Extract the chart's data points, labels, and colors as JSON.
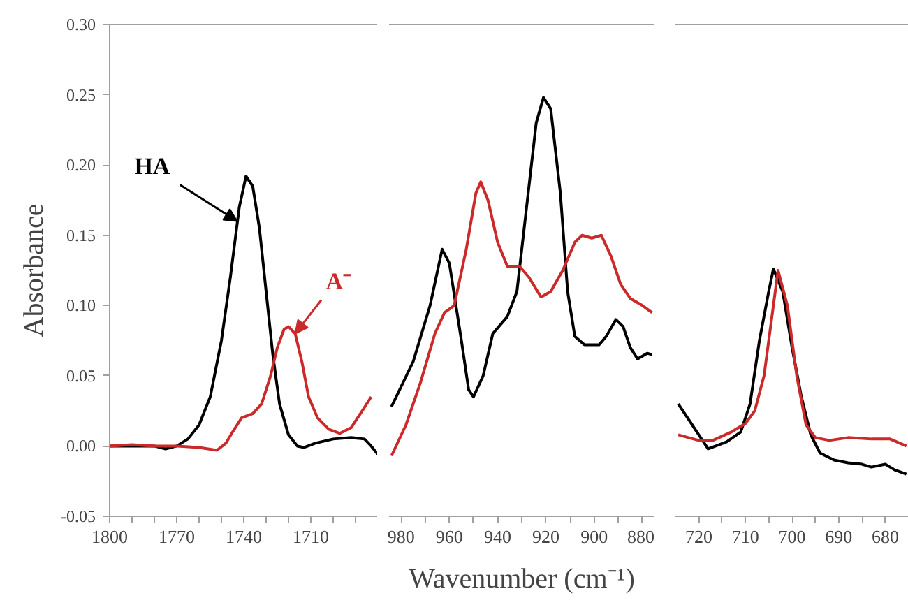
{
  "chart_data": [
    {
      "type": "line",
      "ylabel": "Absorbance",
      "xlim": [
        1800,
        1680
      ],
      "ylim": [
        -0.05,
        0.3
      ],
      "xticks": [
        1800,
        {
          "value": 1790,
          "label": null
        },
        {
          "value": 1780,
          "label": null
        },
        1770,
        {
          "value": 1760,
          "label": null
        },
        {
          "value": 1750,
          "label": null
        },
        1740,
        {
          "value": 1730,
          "label": null
        },
        {
          "value": 1720,
          "label": null
        },
        1710,
        {
          "value": 1700,
          "label": null
        },
        {
          "value": 1690,
          "label": null
        }
      ],
      "yticks": [
        {
          "value": -0.05,
          "label": "-0.05"
        },
        {
          "value": 0,
          "label": "0.00"
        },
        {
          "value": 0.05,
          "label": "0.05"
        },
        {
          "value": 0.1,
          "label": "0.10"
        },
        {
          "value": 0.15,
          "label": "0.15"
        },
        {
          "value": 0.2,
          "label": "0.20"
        },
        {
          "value": 0.25,
          "label": "0.25"
        },
        {
          "value": 0.3,
          "label": "0.30"
        }
      ],
      "annotations": [
        {
          "text": "HA",
          "x": 1743,
          "y": 0.16
        },
        {
          "text": "A⁻",
          "x": 1717,
          "y": 0.08
        }
      ],
      "series": [
        {
          "color": "#000000",
          "x": [
            1800,
            1780,
            1775,
            1770,
            1765,
            1760,
            1755,
            1750,
            1746,
            1742,
            1739,
            1736,
            1733,
            1730,
            1727,
            1724,
            1720,
            1716,
            1713,
            1708,
            1700,
            1692,
            1686,
            1683,
            1680
          ],
          "values": [
            0,
            0,
            -0.002,
            0,
            0.005,
            0.015,
            0.035,
            0.075,
            0.12,
            0.17,
            0.192,
            0.185,
            0.155,
            0.11,
            0.065,
            0.03,
            0.008,
            0,
            -0.001,
            0.002,
            0.005,
            0.006,
            0.005,
            0,
            -0.006
          ]
        },
        {
          "color": "#cc2a2a",
          "x": [
            1800,
            1790,
            1780,
            1770,
            1760,
            1752,
            1748,
            1745,
            1741,
            1736,
            1732,
            1728,
            1725,
            1722,
            1720,
            1717,
            1714,
            1711,
            1707,
            1702,
            1697,
            1692,
            1687,
            1683
          ],
          "values": [
            0,
            0.001,
            0,
            0,
            -0.001,
            -0.003,
            0.002,
            0.01,
            0.02,
            0.023,
            0.03,
            0.05,
            0.07,
            0.083,
            0.085,
            0.08,
            0.06,
            0.035,
            0.02,
            0.012,
            0.009,
            0.013,
            0.025,
            0.035
          ]
        }
      ]
    },
    {
      "type": "line",
      "xlabel": "Wavenumber (cm⁻¹)",
      "xlim": [
        985,
        875
      ],
      "ylim": [
        -0.05,
        0.3
      ],
      "tick_labels": "x",
      "xticks": [
        980,
        {
          "value": 970,
          "label": null
        },
        960,
        {
          "value": 950,
          "label": null
        },
        940,
        {
          "value": 930,
          "label": null
        },
        920,
        {
          "value": 910,
          "label": null
        },
        900,
        {
          "value": 890,
          "label": null
        },
        880
      ],
      "series": [
        {
          "color": "#000000",
          "x": [
            984,
            975,
            968,
            963,
            960,
            955,
            952,
            950,
            946,
            942,
            936,
            932,
            928,
            924,
            921,
            918,
            914,
            911,
            908,
            904,
            898,
            895,
            891,
            888,
            885,
            882,
            878,
            876
          ],
          "values": [
            0.028,
            0.06,
            0.1,
            0.14,
            0.13,
            0.075,
            0.04,
            0.035,
            0.05,
            0.08,
            0.092,
            0.11,
            0.17,
            0.23,
            0.248,
            0.24,
            0.18,
            0.11,
            0.078,
            0.072,
            0.072,
            0.078,
            0.09,
            0.085,
            0.07,
            0.062,
            0.066,
            0.065
          ]
        },
        {
          "color": "#cc2a2a",
          "x": [
            984,
            978,
            972,
            966,
            962,
            958,
            953,
            949,
            947,
            944,
            940,
            936,
            931,
            927,
            922,
            918,
            913,
            908,
            905,
            901,
            897,
            893,
            889,
            885,
            880,
            876
          ],
          "values": [
            -0.007,
            0.015,
            0.045,
            0.08,
            0.095,
            0.1,
            0.14,
            0.18,
            0.188,
            0.175,
            0.145,
            0.128,
            0.128,
            0.12,
            0.106,
            0.11,
            0.125,
            0.145,
            0.15,
            0.148,
            0.15,
            0.135,
            0.115,
            0.105,
            0.1,
            0.095
          ]
        }
      ]
    },
    {
      "type": "line",
      "xlim": [
        725,
        675
      ],
      "ylim": [
        -0.05,
        0.3
      ],
      "tick_labels": "x",
      "xticks": [
        720,
        {
          "value": 715,
          "label": null
        },
        710,
        {
          "value": 705,
          "label": null
        },
        700,
        {
          "value": 695,
          "label": null
        },
        690,
        {
          "value": 685,
          "label": null
        },
        680
      ],
      "series": [
        {
          "color": "#000000",
          "x": [
            724.4,
            722,
            718,
            714,
            711,
            709,
            707,
            705,
            704,
            702,
            700,
            698,
            696,
            694,
            691,
            688,
            685,
            683,
            680,
            678,
            675.5
          ],
          "values": [
            0.03,
            0.018,
            -0.002,
            0.003,
            0.01,
            0.03,
            0.075,
            0.11,
            0.126,
            0.11,
            0.07,
            0.035,
            0.008,
            -0.005,
            -0.01,
            -0.012,
            -0.013,
            -0.015,
            -0.013,
            -0.017,
            -0.02
          ]
        },
        {
          "color": "#cc2a2a",
          "x": [
            724.4,
            720,
            717,
            713,
            710,
            708,
            706,
            704,
            703,
            701,
            699,
            697,
            695,
            692,
            688,
            683,
            679,
            675.5
          ],
          "values": [
            0.008,
            0.004,
            0.004,
            0.01,
            0.016,
            0.025,
            0.05,
            0.1,
            0.125,
            0.1,
            0.05,
            0.015,
            0.006,
            0.004,
            0.006,
            0.005,
            0.005,
            0.0
          ]
        }
      ]
    }
  ]
}
